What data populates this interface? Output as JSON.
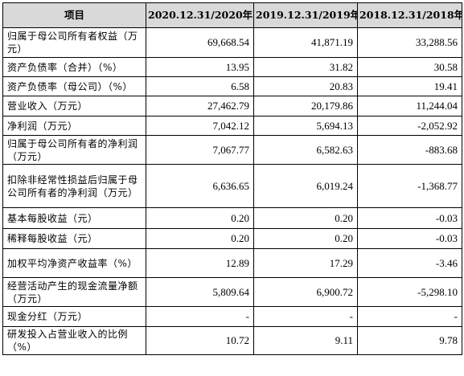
{
  "table": {
    "headers": [
      "项目",
      "2020.12.31/2020年",
      "2019.12.31/2019年",
      "2018.12.31/2018年"
    ],
    "rows": [
      {
        "label": "归属于母公司所有者权益（万元）",
        "values": [
          "69,668.54",
          "41,871.19",
          "33,288.56"
        ]
      },
      {
        "label": "资产负债率（合并）（%）",
        "values": [
          "13.95",
          "31.82",
          "30.58"
        ]
      },
      {
        "label": "资产负债率（母公司）（%）",
        "values": [
          "6.58",
          "20.83",
          "19.41"
        ]
      },
      {
        "label": "营业收入（万元）",
        "values": [
          "27,462.79",
          "20,179.86",
          "11,244.04"
        ]
      },
      {
        "label": "净利润（万元）",
        "values": [
          "7,042.12",
          "5,694.13",
          "-2,052.92"
        ]
      },
      {
        "label": "归属于母公司所有者的净利润（万元）",
        "values": [
          "7,067.77",
          "6,582.63",
          "-883.68"
        ]
      },
      {
        "label": "扣除非经常性损益后归属于母公司所有者的净利润（万元）",
        "values": [
          "6,636.65",
          "6,019.24",
          "-1,368.77"
        ]
      },
      {
        "label": "基本每股收益（元）",
        "values": [
          "0.20",
          "0.20",
          "-0.03"
        ]
      },
      {
        "label": "稀释每股收益（元）",
        "values": [
          "0.20",
          "0.20",
          "-0.03"
        ]
      },
      {
        "label": "加权平均净资产收益率（%）",
        "values": [
          "12.89",
          "17.29",
          "-3.46"
        ]
      },
      {
        "label": "经营活动产生的现金流量净额（万元）",
        "values": [
          "5,809.64",
          "6,900.72",
          "-5,298.10"
        ]
      },
      {
        "label": "现金分红（万元）",
        "values": [
          "-",
          "-",
          "-"
        ]
      },
      {
        "label": "研发投入占营业收入的比例（%）",
        "values": [
          "10.72",
          "9.11",
          "9.78"
        ]
      }
    ]
  }
}
